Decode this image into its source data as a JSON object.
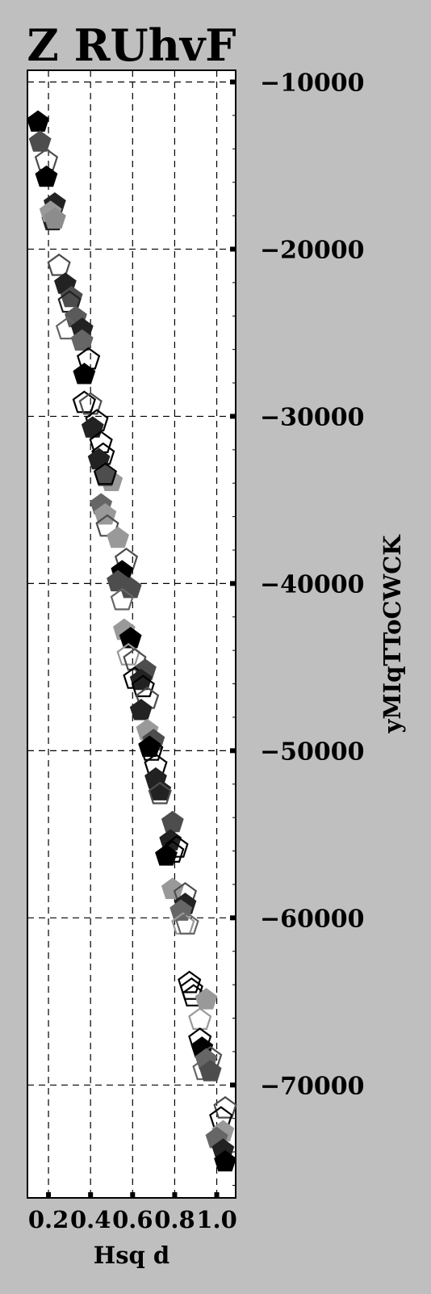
{
  "chart_data": {
    "type": "scatter",
    "title": "Z RUhvF",
    "xlabel": "Hsq  d",
    "ylabel": "yMIqTToCWCK",
    "xlim": [
      0.1,
      1.09
    ],
    "ylim": [
      -76750,
      -9300
    ],
    "x_ticks": [
      0.2,
      0.4,
      0.6,
      0.8,
      1.0
    ],
    "x_tick_labels": [
      "0.2",
      "0.4",
      "0.6",
      "0.8",
      "1.0"
    ],
    "y_ticks": [
      -10000,
      -20000,
      -30000,
      -40000,
      -50000,
      -60000,
      -70000
    ],
    "y_tick_labels": [
      "−10000",
      "−20000",
      "−30000",
      "−40000",
      "−50000",
      "−60000",
      "−70000"
    ],
    "y_axis_position": "right",
    "grid": true,
    "marker": "pentagon",
    "points": [
      {
        "x": 0.15,
        "y": -12400,
        "fill": "#000000"
      },
      {
        "x": 0.16,
        "y": -13600,
        "fill": "#4d4d4d"
      },
      {
        "x": 0.19,
        "y": -14700,
        "fill": "none",
        "stroke": "#4d4d4d"
      },
      {
        "x": 0.19,
        "y": -15700,
        "fill": "#000000"
      },
      {
        "x": 0.23,
        "y": -17300,
        "fill": "#222222"
      },
      {
        "x": 0.22,
        "y": -18300,
        "fill": "#222222"
      },
      {
        "x": 0.21,
        "y": -17800,
        "fill": "#999999"
      },
      {
        "x": 0.23,
        "y": -18200,
        "fill": "#8c8c8c"
      },
      {
        "x": 0.25,
        "y": -21000,
        "fill": "none",
        "stroke": "#4d4d4d"
      },
      {
        "x": 0.28,
        "y": -22100,
        "fill": "#222222"
      },
      {
        "x": 0.31,
        "y": -22900,
        "fill": "#4d4d4d"
      },
      {
        "x": 0.3,
        "y": -23200,
        "fill": "none",
        "stroke": "#222222"
      },
      {
        "x": 0.33,
        "y": -24100,
        "fill": "#5a5a5a"
      },
      {
        "x": 0.29,
        "y": -24800,
        "fill": "none",
        "stroke": "#666666"
      },
      {
        "x": 0.36,
        "y": -24800,
        "fill": "#222222"
      },
      {
        "x": 0.36,
        "y": -25500,
        "fill": "#666666"
      },
      {
        "x": 0.39,
        "y": -26600,
        "fill": "none",
        "stroke": "#000000"
      },
      {
        "x": 0.37,
        "y": -27500,
        "fill": "#000000"
      },
      {
        "x": 0.37,
        "y": -29200,
        "fill": "none",
        "stroke": "#000000"
      },
      {
        "x": 0.4,
        "y": -29300,
        "fill": "none",
        "stroke": "#4d4d4d"
      },
      {
        "x": 0.43,
        "y": -30300,
        "fill": "none",
        "stroke": "#000000"
      },
      {
        "x": 0.41,
        "y": -30700,
        "fill": "#222222"
      },
      {
        "x": 0.45,
        "y": -31600,
        "fill": "none",
        "stroke": "#000000"
      },
      {
        "x": 0.46,
        "y": -32300,
        "fill": "none",
        "stroke": "#000000"
      },
      {
        "x": 0.44,
        "y": -32600,
        "fill": "#222222"
      },
      {
        "x": 0.5,
        "y": -33900,
        "fill": "#999999"
      },
      {
        "x": 0.47,
        "y": -33600,
        "fill": "#4d4d4d"
      },
      {
        "x": 0.47,
        "y": -33500,
        "fill": "none",
        "stroke": "#000000"
      },
      {
        "x": 0.45,
        "y": -35300,
        "fill": "#666666"
      },
      {
        "x": 0.47,
        "y": -35900,
        "fill": "#999999"
      },
      {
        "x": 0.48,
        "y": -36600,
        "fill": "none",
        "stroke": "#4d4d4d"
      },
      {
        "x": 0.53,
        "y": -37300,
        "fill": "#999999"
      },
      {
        "x": 0.57,
        "y": -38600,
        "fill": "none",
        "stroke": "#4d4d4d"
      },
      {
        "x": 0.55,
        "y": -39300,
        "fill": "#000000"
      },
      {
        "x": 0.53,
        "y": -39900,
        "fill": "#4d4d4d"
      },
      {
        "x": 0.59,
        "y": -40300,
        "fill": "#4d4d4d"
      },
      {
        "x": 0.55,
        "y": -41000,
        "fill": "none",
        "stroke": "#666666"
      },
      {
        "x": 0.56,
        "y": -42800,
        "fill": "#999999"
      },
      {
        "x": 0.59,
        "y": -43300,
        "fill": "#000000"
      },
      {
        "x": 0.58,
        "y": -44300,
        "fill": "none",
        "stroke": "#999999"
      },
      {
        "x": 0.61,
        "y": -44600,
        "fill": "none",
        "stroke": "#4d4d4d"
      },
      {
        "x": 0.66,
        "y": -45200,
        "fill": "#4d4d4d"
      },
      {
        "x": 0.61,
        "y": -45700,
        "fill": "none",
        "stroke": "#000000"
      },
      {
        "x": 0.64,
        "y": -45800,
        "fill": "#222222"
      },
      {
        "x": 0.65,
        "y": -46200,
        "fill": "none",
        "stroke": "#000000"
      },
      {
        "x": 0.67,
        "y": -46900,
        "fill": "none",
        "stroke": "#4d4d4d"
      },
      {
        "x": 0.64,
        "y": -47600,
        "fill": "#222222"
      },
      {
        "x": 0.67,
        "y": -48800,
        "fill": "#999999"
      },
      {
        "x": 0.7,
        "y": -49400,
        "fill": "#4d4d4d"
      },
      {
        "x": 0.68,
        "y": -49800,
        "fill": "#000000"
      },
      {
        "x": 0.69,
        "y": -50000,
        "fill": "none",
        "stroke": "#000000"
      },
      {
        "x": 0.71,
        "y": -50900,
        "fill": "none",
        "stroke": "#000000"
      },
      {
        "x": 0.71,
        "y": -51700,
        "fill": "#222222"
      },
      {
        "x": 0.73,
        "y": -52400,
        "fill": "#222222"
      },
      {
        "x": 0.73,
        "y": -52600,
        "fill": "none",
        "stroke": "#4d4d4d"
      },
      {
        "x": 0.79,
        "y": -54300,
        "fill": "#4d4d4d"
      },
      {
        "x": 0.78,
        "y": -55400,
        "fill": "#222222"
      },
      {
        "x": 0.81,
        "y": -55800,
        "fill": "none",
        "stroke": "#000000"
      },
      {
        "x": 0.79,
        "y": -56100,
        "fill": "none",
        "stroke": "#000000"
      },
      {
        "x": 0.76,
        "y": -56300,
        "fill": "#000000"
      },
      {
        "x": 0.79,
        "y": -58300,
        "fill": "#999999"
      },
      {
        "x": 0.85,
        "y": -58600,
        "fill": "none",
        "stroke": "#4d4d4d"
      },
      {
        "x": 0.85,
        "y": -59200,
        "fill": "#222222"
      },
      {
        "x": 0.83,
        "y": -59600,
        "fill": "#666666"
      },
      {
        "x": 0.84,
        "y": -60400,
        "fill": "none",
        "stroke": "#999999"
      },
      {
        "x": 0.86,
        "y": -60400,
        "fill": "none",
        "stroke": "#666666"
      },
      {
        "x": 0.87,
        "y": -63900,
        "fill": "none",
        "stroke": "#000000"
      },
      {
        "x": 0.88,
        "y": -64300,
        "fill": "none",
        "stroke": "#000000"
      },
      {
        "x": 0.89,
        "y": -64700,
        "fill": "none",
        "stroke": "#000000"
      },
      {
        "x": 0.95,
        "y": -64900,
        "fill": "#999999"
      },
      {
        "x": 0.92,
        "y": -66100,
        "fill": "none",
        "stroke": "#999999"
      },
      {
        "x": 0.92,
        "y": -67300,
        "fill": "none",
        "stroke": "#000000"
      },
      {
        "x": 0.93,
        "y": -67800,
        "fill": "#000000"
      },
      {
        "x": 0.97,
        "y": -68400,
        "fill": "none",
        "stroke": "#4d4d4d"
      },
      {
        "x": 0.95,
        "y": -68500,
        "fill": "#666666"
      },
      {
        "x": 0.94,
        "y": -69100,
        "fill": "none",
        "stroke": "#666666"
      },
      {
        "x": 0.97,
        "y": -69200,
        "fill": "#4d4d4d"
      },
      {
        "x": 1.04,
        "y": -71400,
        "fill": "none",
        "stroke": "#4d4d4d"
      },
      {
        "x": 1.02,
        "y": -72000,
        "fill": "none",
        "stroke": "#000000"
      },
      {
        "x": 1.03,
        "y": -72800,
        "fill": "#999999"
      },
      {
        "x": 1.0,
        "y": -73200,
        "fill": "#666666"
      },
      {
        "x": 1.03,
        "y": -73900,
        "fill": "#222222"
      },
      {
        "x": 1.04,
        "y": -74600,
        "fill": "#000000"
      }
    ]
  }
}
